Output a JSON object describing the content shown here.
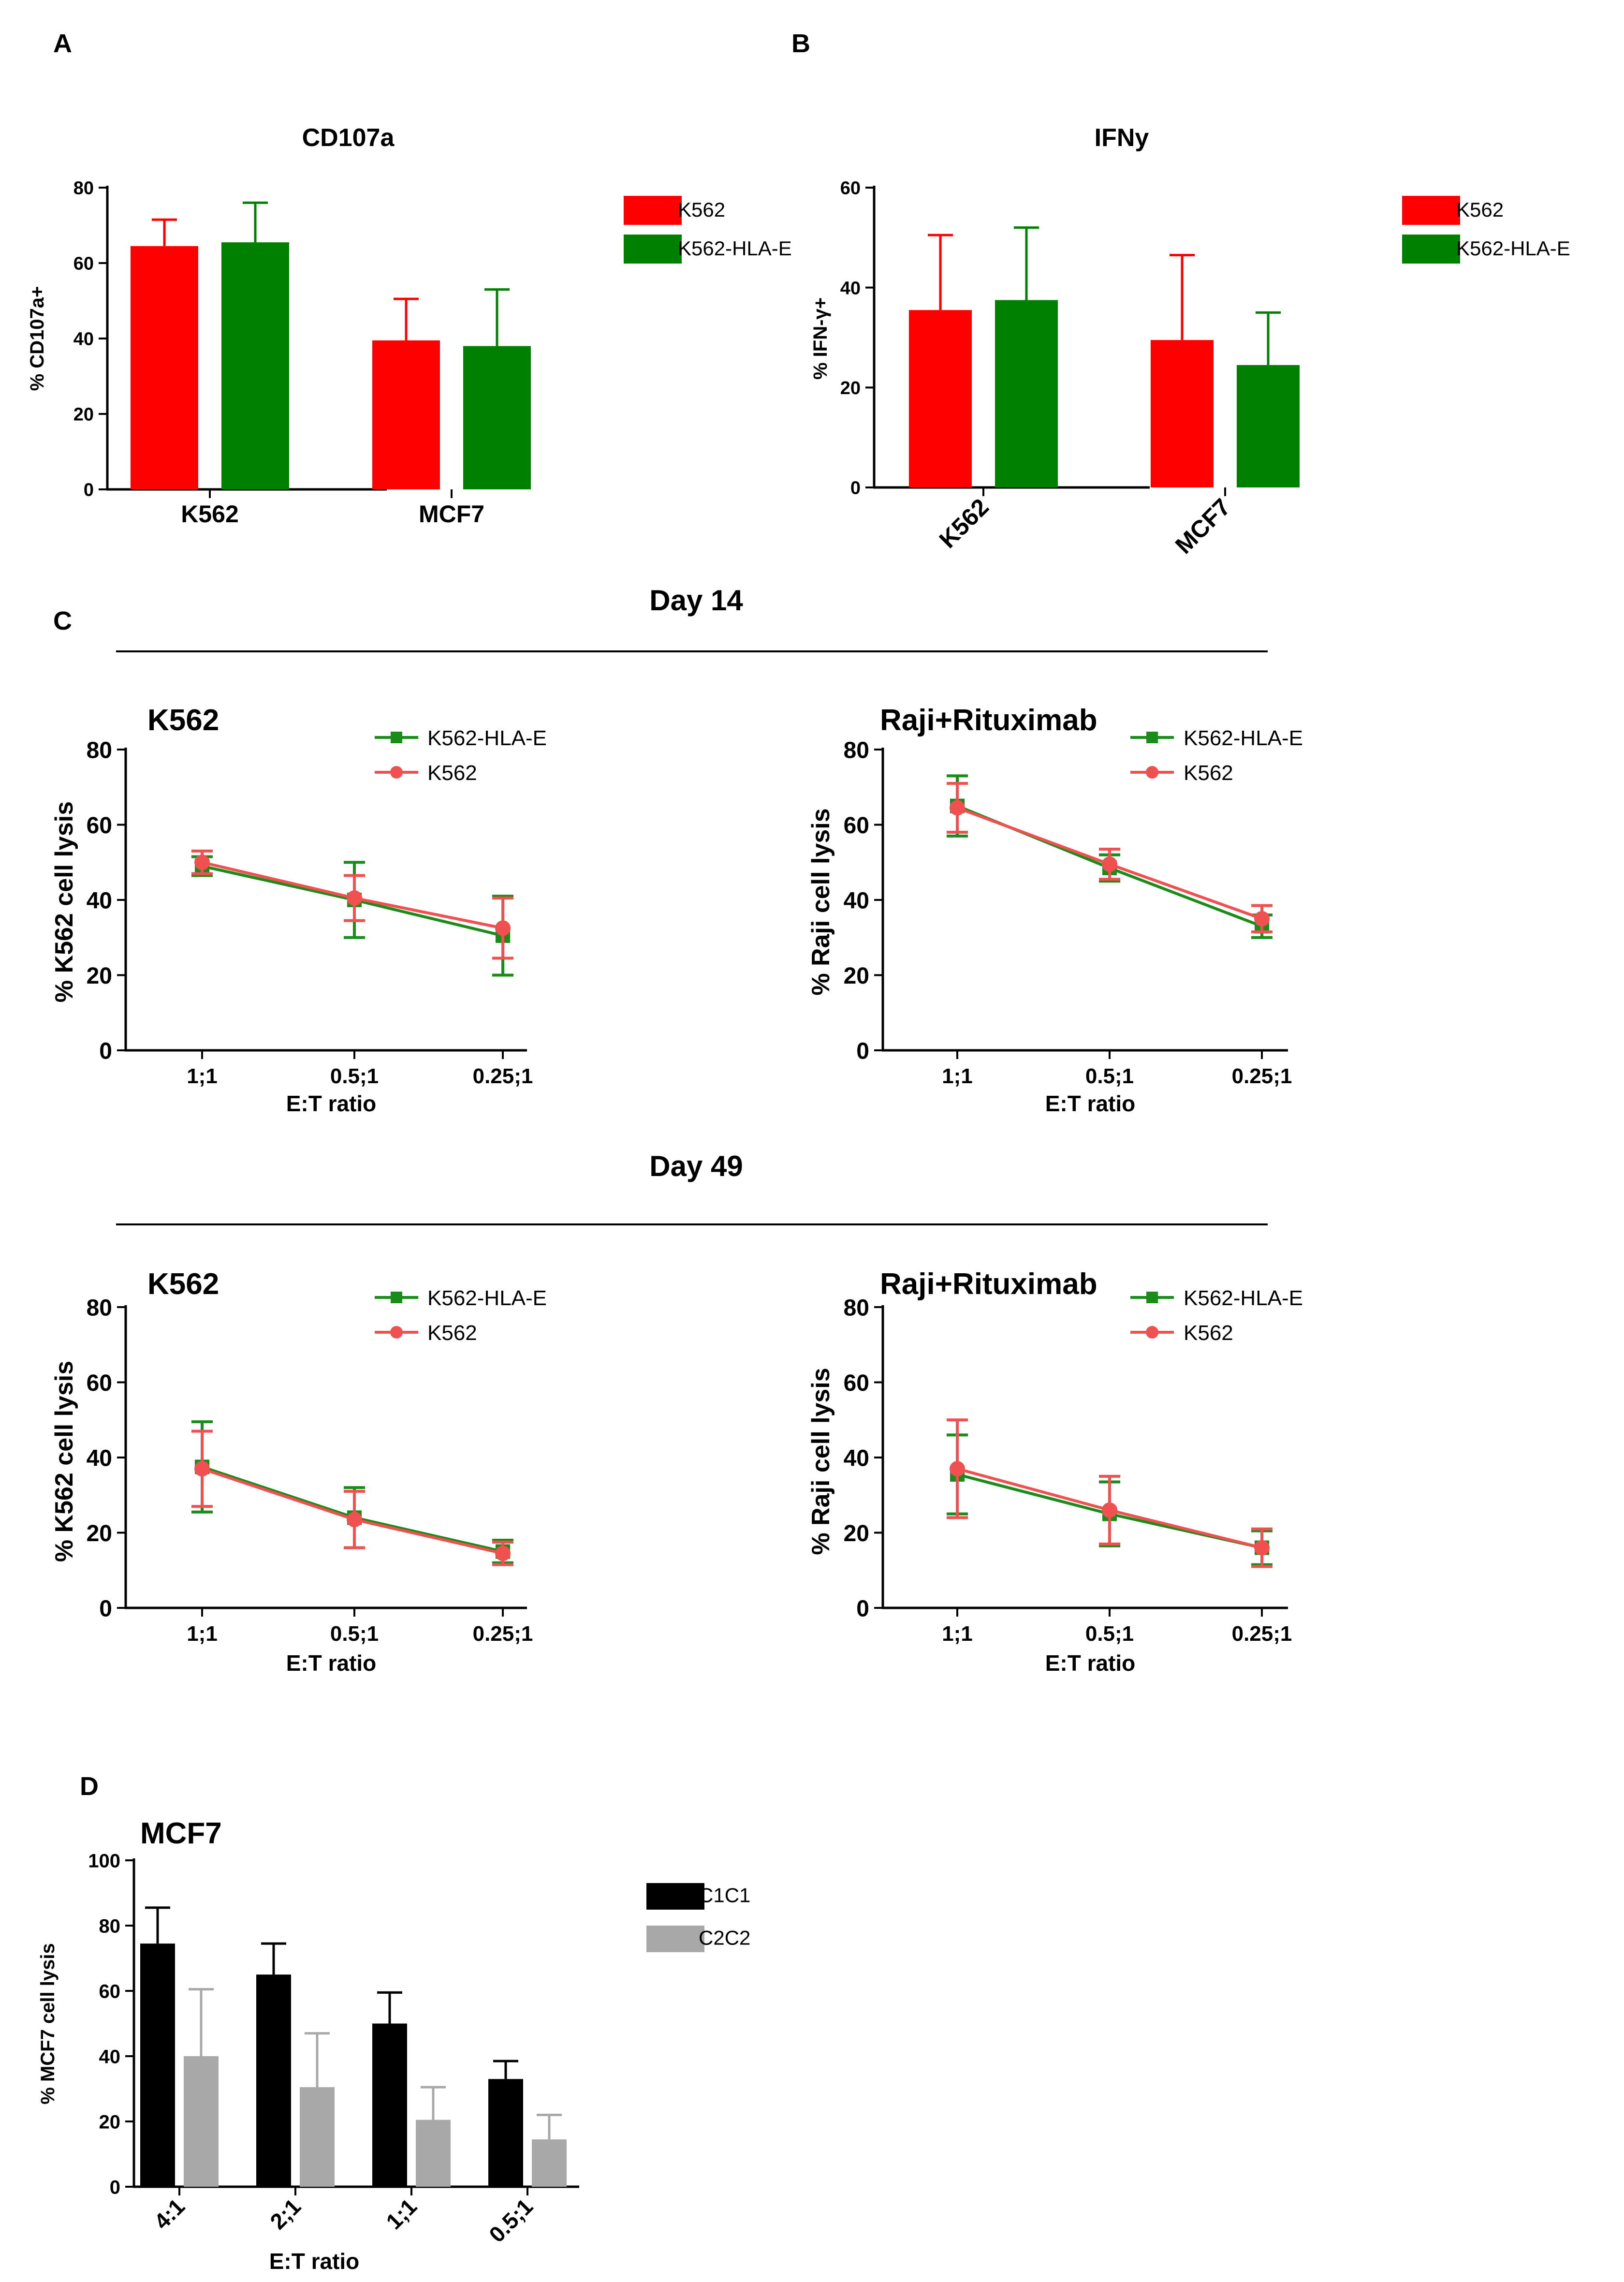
{
  "panel_labels": {
    "a": "A",
    "b": "B",
    "c": "C",
    "d": "D"
  },
  "section_titles": {
    "day14": "Day 14",
    "day49": "Day 49"
  },
  "colors": {
    "red": "#ff0000",
    "green": "#008000",
    "line_green": "#1a8c1a",
    "line_red": "#f05050",
    "black": "#000000",
    "grey": "#a8a8a8"
  },
  "chart_data": [
    {
      "id": "A",
      "type": "bar",
      "title": "CD107a",
      "ylabel": "% CD107a+",
      "xlabel": "",
      "ylim": [
        0,
        80
      ],
      "yticks": [
        0,
        20,
        40,
        60,
        80
      ],
      "tick_rotate": false,
      "categories": [
        "K562",
        "MCF7"
      ],
      "legend": {
        "position": "right",
        "entries": [
          "K562",
          "K562-HLA-E"
        ]
      },
      "series": [
        {
          "name": "K562",
          "color": "#ff0000",
          "values": [
            64.5,
            39.5
          ],
          "errors": [
            7,
            11
          ]
        },
        {
          "name": "K562-HLA-E",
          "color": "#008000",
          "values": [
            65.5,
            38
          ],
          "errors": [
            10.5,
            15
          ]
        }
      ]
    },
    {
      "id": "B",
      "type": "bar",
      "title": "IFNy",
      "ylabel": "% IFN-γ+",
      "xlabel": "",
      "ylim": [
        0,
        60
      ],
      "yticks": [
        0,
        20,
        40,
        60
      ],
      "tick_rotate": true,
      "categories": [
        "K562",
        "MCF7"
      ],
      "legend": {
        "position": "right",
        "entries": [
          "K562",
          "K562-HLA-E"
        ]
      },
      "series": [
        {
          "name": "K562",
          "color": "#ff0000",
          "values": [
            35.5,
            29.5
          ],
          "errors": [
            15,
            17
          ]
        },
        {
          "name": "K562-HLA-E",
          "color": "#008000",
          "values": [
            37.5,
            24.5
          ],
          "errors": [
            14.5,
            10.5
          ]
        }
      ]
    },
    {
      "id": "C1",
      "type": "line",
      "title": "K562",
      "ylabel": "% K562 cell lysis",
      "xlabel": "E:T ratio",
      "ylim": [
        0,
        80
      ],
      "yticks": [
        0,
        20,
        40,
        60,
        80
      ],
      "x": [
        "1;1",
        "0.5;1",
        "0.25;1"
      ],
      "legend": {
        "position": "top-right",
        "entries": [
          "K562-HLA-E",
          "K562"
        ]
      },
      "series": [
        {
          "name": "K562-HLA-E",
          "color": "#1a8c1a",
          "marker": "square",
          "values": [
            49,
            40,
            30.5
          ],
          "errors": [
            2.5,
            10,
            10.5
          ]
        },
        {
          "name": "K562",
          "color": "#f05050",
          "marker": "circle",
          "values": [
            50,
            40.5,
            32.5
          ],
          "errors": [
            3,
            6,
            8
          ]
        }
      ]
    },
    {
      "id": "C2",
      "type": "line",
      "title": "Raji+Rituximab",
      "ylabel": "% Raji cell lysis",
      "xlabel": "E:T ratio",
      "ylim": [
        0,
        80
      ],
      "yticks": [
        0,
        20,
        40,
        60,
        80
      ],
      "x": [
        "1;1",
        "0.5;1",
        "0.25;1"
      ],
      "legend": {
        "position": "top-right",
        "entries": [
          "K562-HLA-E",
          "K562"
        ]
      },
      "series": [
        {
          "name": "K562-HLA-E",
          "color": "#1a8c1a",
          "marker": "square",
          "values": [
            65,
            48.5,
            33
          ],
          "errors": [
            8,
            3.5,
            3
          ]
        },
        {
          "name": "K562",
          "color": "#f05050",
          "marker": "circle",
          "values": [
            64.5,
            49.5,
            35
          ],
          "errors": [
            6.5,
            4,
            3.5
          ]
        }
      ]
    },
    {
      "id": "C3",
      "type": "line",
      "title": "K562",
      "ylabel": "% K562 cell lysis",
      "xlabel": "E:T ratio",
      "ylim": [
        0,
        80
      ],
      "yticks": [
        0,
        20,
        40,
        60,
        80
      ],
      "x": [
        "1;1",
        "0.5;1",
        "0.25;1"
      ],
      "legend": {
        "position": "top-right",
        "entries": [
          "K562-HLA-E",
          "K562"
        ]
      },
      "series": [
        {
          "name": "K562-HLA-E",
          "color": "#1a8c1a",
          "marker": "square",
          "values": [
            37.5,
            24,
            15
          ],
          "errors": [
            12,
            8,
            3
          ]
        },
        {
          "name": "K562",
          "color": "#f05050",
          "marker": "circle",
          "values": [
            37,
            23.5,
            14.5
          ],
          "errors": [
            10,
            7.5,
            3
          ]
        }
      ]
    },
    {
      "id": "C4",
      "type": "line",
      "title": "Raji+Rituximab",
      "ylabel": "% Raji cell lysis",
      "xlabel": "E:T ratio",
      "ylim": [
        0,
        80
      ],
      "yticks": [
        0,
        20,
        40,
        60,
        80
      ],
      "x": [
        "1;1",
        "0.5;1",
        "0.25;1"
      ],
      "legend": {
        "position": "top-right",
        "entries": [
          "K562-HLA-E",
          "K562"
        ]
      },
      "series": [
        {
          "name": "K562-HLA-E",
          "color": "#1a8c1a",
          "marker": "square",
          "values": [
            35.5,
            25,
            16
          ],
          "errors": [
            10.5,
            8.5,
            4.5
          ]
        },
        {
          "name": "K562",
          "color": "#f05050",
          "marker": "circle",
          "values": [
            37,
            26,
            16
          ],
          "errors": [
            13,
            9,
            5
          ]
        }
      ]
    },
    {
      "id": "D",
      "type": "bar",
      "title": "MCF7",
      "ylabel": "% MCF7 cell lysis",
      "xlabel": "E:T ratio",
      "ylim": [
        0,
        100
      ],
      "yticks": [
        0,
        20,
        40,
        60,
        80,
        100
      ],
      "tick_rotate": true,
      "categories": [
        "4:1",
        "2;1",
        "1;1",
        "0.5;1"
      ],
      "legend": {
        "position": "right",
        "entries": [
          "C1C1",
          "C2C2"
        ]
      },
      "series": [
        {
          "name": "C1C1",
          "color": "#000000",
          "values": [
            74.5,
            65,
            50,
            33
          ],
          "errors": [
            11,
            9.5,
            9.5,
            5.5
          ]
        },
        {
          "name": "C2C2",
          "color": "#a8a8a8",
          "values": [
            40,
            30.5,
            20.5,
            14.5
          ],
          "errors": [
            20.5,
            16.5,
            10,
            7.5
          ]
        }
      ]
    }
  ]
}
